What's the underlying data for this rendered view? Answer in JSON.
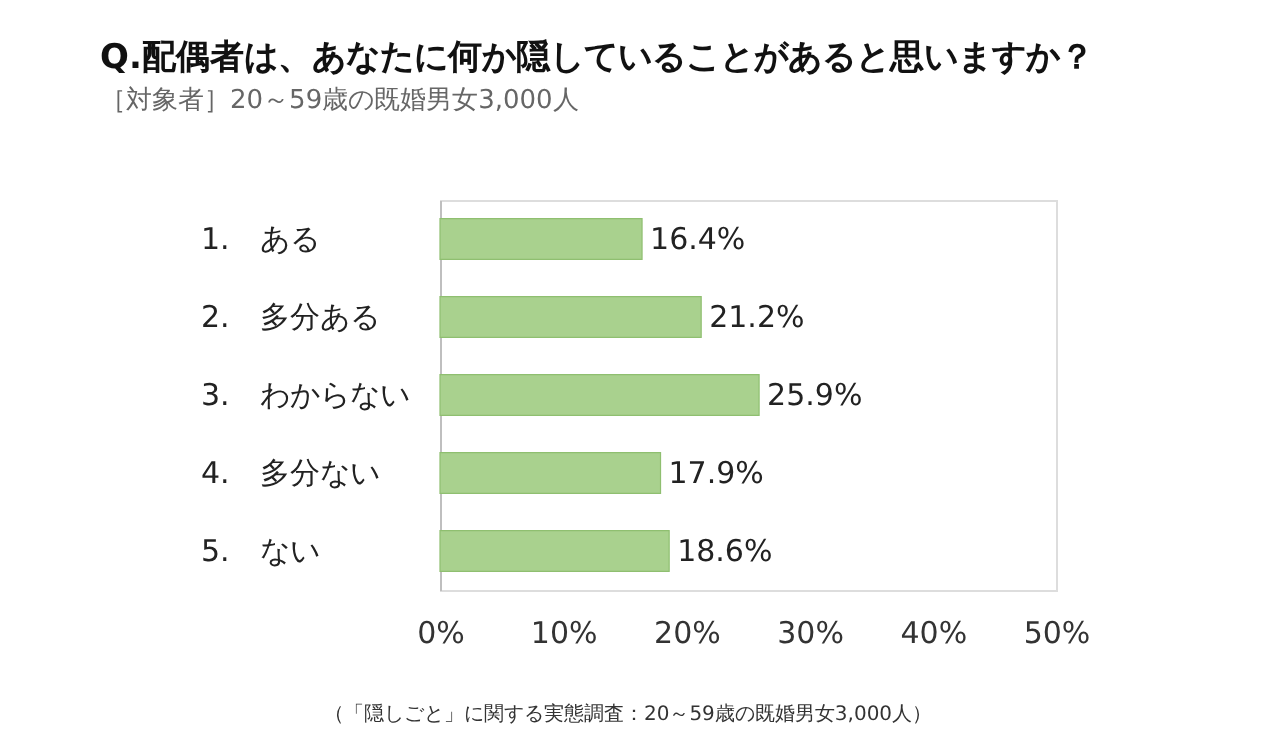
{
  "chart_data": {
    "type": "bar",
    "orientation": "horizontal",
    "title": "Q.配偶者は、あなたに何か隠していることがあると思いますか？",
    "subtitle": "［対象者］20～59歳の既婚男女3,000人",
    "categories": [
      "1.　ある",
      "2.　多分ある",
      "3.　わからない",
      "4.　多分ない",
      "5.　ない"
    ],
    "values": [
      16.4,
      21.2,
      25.9,
      17.9,
      18.6
    ],
    "value_labels": [
      "16.4%",
      "21.2%",
      "25.9%",
      "17.9%",
      "18.6%"
    ],
    "color": "#a9d18e",
    "xlim": [
      0,
      50
    ],
    "xticks": [
      {
        "value": 0,
        "label": "0%"
      },
      {
        "value": 10,
        "label": "10%"
      },
      {
        "value": 20,
        "label": "20%"
      },
      {
        "value": 30,
        "label": "30%"
      },
      {
        "value": 40,
        "label": "40%"
      },
      {
        "value": 50,
        "label": "50%"
      }
    ],
    "grid": false,
    "annotations": [
      "（「隠しごと」に関する実態調査：20～59歳の既婚男女3,000人）"
    ]
  }
}
